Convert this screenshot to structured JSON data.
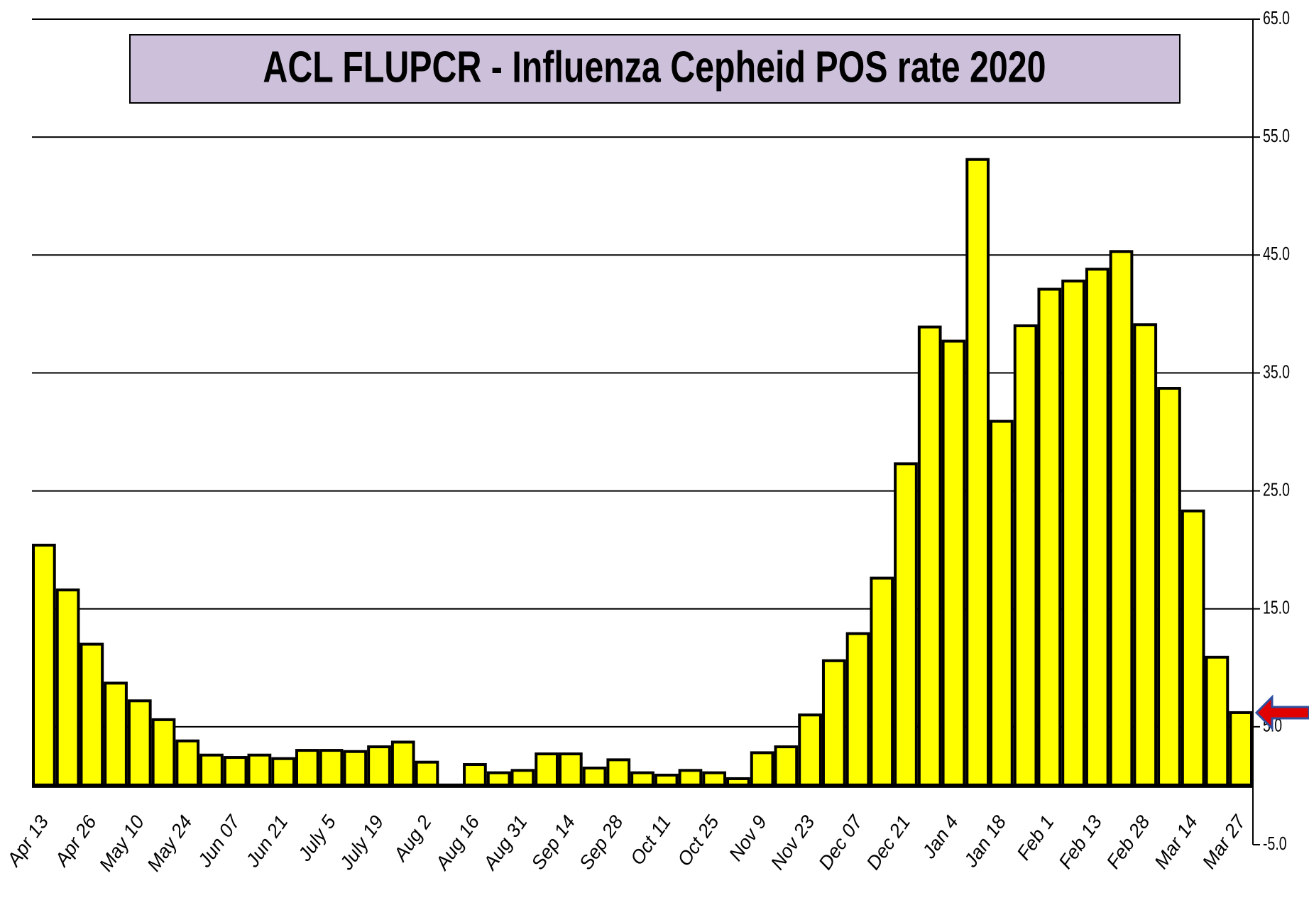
{
  "chart_data": {
    "type": "bar",
    "title": "ACL FLUPCR -  Influenza Cepheid POS rate  2020",
    "categories": [
      "Apr 13",
      null,
      "Apr 26",
      null,
      "May 10",
      null,
      "May 24",
      null,
      "Jun 07",
      null,
      "Jun 21",
      null,
      "July 5",
      null,
      "July 19",
      null,
      "Aug 2",
      null,
      "Aug 16",
      null,
      "Aug 31",
      null,
      "Sep 14",
      null,
      "Sep 28",
      null,
      "Oct 11",
      null,
      "Oct 25",
      null,
      "Nov 9",
      null,
      "Nov 23",
      null,
      "Dec 07",
      null,
      "Dec 21",
      null,
      "Jan 4",
      null,
      "Jan 18",
      null,
      "Feb 1",
      null,
      "Feb 13",
      null,
      "Feb 28",
      null,
      "Mar 14",
      null,
      "Mar 27"
    ],
    "values": [
      20.4,
      16.6,
      12.0,
      8.7,
      7.2,
      5.6,
      3.8,
      2.6,
      2.4,
      2.6,
      2.3,
      3.0,
      3.0,
      2.9,
      3.3,
      3.7,
      2.0,
      null,
      1.8,
      1.1,
      1.3,
      2.7,
      2.7,
      1.5,
      2.2,
      1.1,
      0.9,
      1.3,
      1.1,
      0.6,
      2.8,
      3.3,
      6.0,
      10.6,
      12.9,
      17.6,
      27.3,
      38.9,
      37.7,
      53.1,
      30.9,
      39.0,
      42.1,
      42.8,
      43.8,
      45.3,
      39.1,
      33.7,
      23.3,
      10.9,
      6.2
    ],
    "color": "#ffff00",
    "ylim": [
      -5,
      65
    ],
    "yticks": [
      {
        "value": -5,
        "label": "-5.0"
      },
      {
        "value": 5,
        "label": "5.0"
      },
      {
        "value": 15,
        "label": "15.0"
      },
      {
        "value": 25,
        "label": "25.0"
      },
      {
        "value": 35,
        "label": "35.0"
      },
      {
        "value": 45,
        "label": "45.0"
      },
      {
        "value": 55,
        "label": "55.0"
      },
      {
        "value": 65,
        "label": "65.0"
      }
    ],
    "grid": true
  }
}
